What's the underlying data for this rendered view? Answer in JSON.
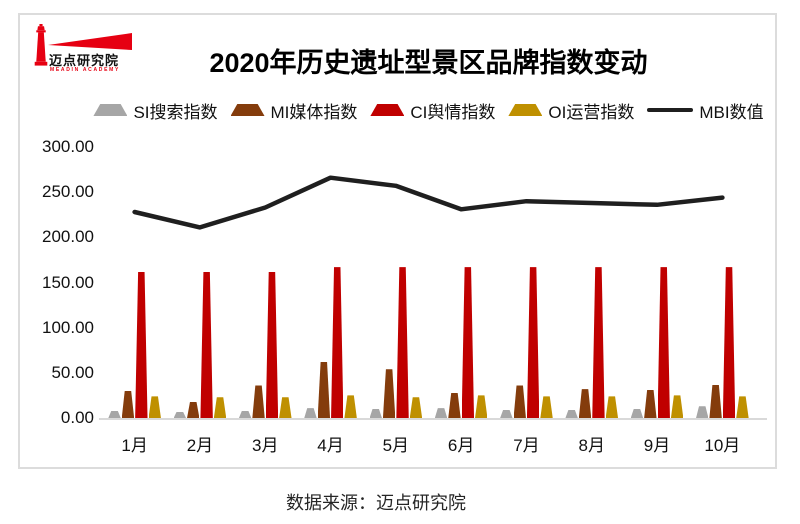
{
  "logo": {
    "name": "迈点研究院",
    "subtext": "MEADIN ACADEMY",
    "color": "#e60012"
  },
  "title": "2020年历史遗址型景区品牌指数变动",
  "source": "数据来源：迈点研究院",
  "colors": {
    "si_gray": "#a6a6a6",
    "mi_brown": "#843c0c",
    "ci_red": "#c00000",
    "oi_gold": "#bf9000",
    "mbi_line": "#1f1f1f",
    "axis": "#d9d9d9",
    "card_border": "#dcdcdc"
  },
  "chart_data": {
    "type": "bar",
    "subtype": "cone-bars-with-line-overlay",
    "title": "2020年历史遗址型景区品牌指数变动",
    "categories": [
      "1月",
      "2月",
      "3月",
      "4月",
      "5月",
      "6月",
      "7月",
      "8月",
      "9月",
      "10月"
    ],
    "series": [
      {
        "key": "si",
        "name": "SI搜索指数",
        "type": "bar",
        "color": "#a6a6a6",
        "values": [
          8,
          7,
          8,
          11,
          10,
          11,
          9,
          9,
          10,
          13
        ]
      },
      {
        "key": "mi",
        "name": "MI媒体指数",
        "type": "bar",
        "color": "#843c0c",
        "values": [
          30,
          18,
          36,
          62,
          54,
          28,
          36,
          32,
          31,
          37
        ]
      },
      {
        "key": "ci",
        "name": "CI舆情指数",
        "type": "bar",
        "color": "#c00000",
        "values": [
          162,
          162,
          162,
          167,
          167,
          167,
          167,
          167,
          167,
          167
        ]
      },
      {
        "key": "oi",
        "name": "OI运营指数",
        "type": "bar",
        "color": "#bf9000",
        "values": [
          24,
          23,
          23,
          25,
          23,
          25,
          24,
          24,
          25,
          24
        ]
      },
      {
        "key": "mbi",
        "name": "MBI数值",
        "type": "line",
        "color": "#1f1f1f",
        "values": [
          228,
          211,
          233,
          266,
          257,
          231,
          240,
          238,
          236,
          244
        ]
      }
    ],
    "ylim": [
      0,
      300
    ],
    "yticks": [
      "300.00",
      "250.00",
      "200.00",
      "150.00",
      "100.00",
      "50.00",
      "0.00"
    ],
    "xlabel": "",
    "ylabel": "",
    "legend_position": "top",
    "grid": false
  }
}
